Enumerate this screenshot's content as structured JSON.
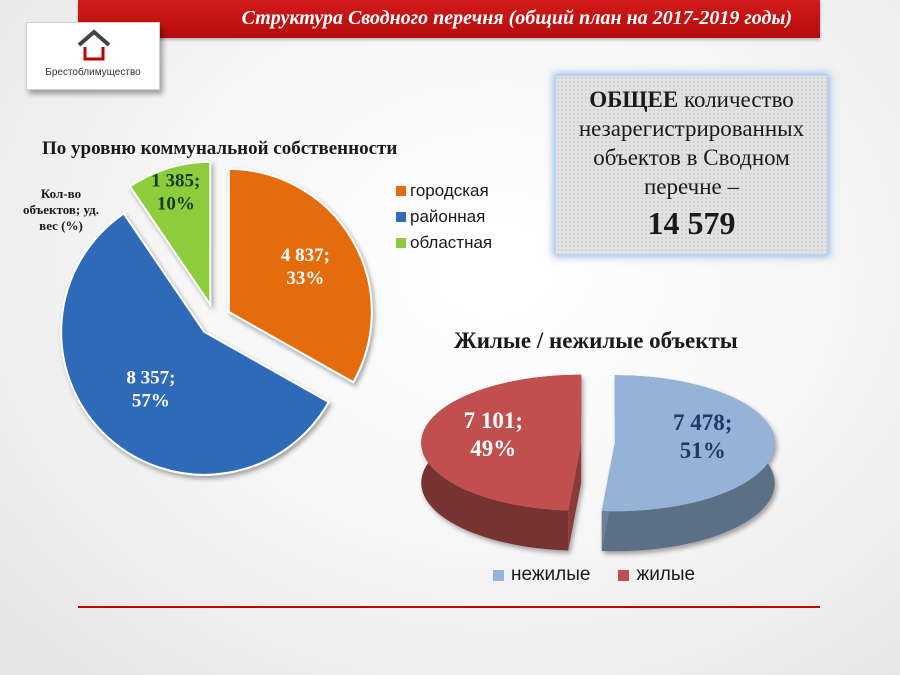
{
  "header": {
    "title": "Структура Сводного перечня (общий план на 2017-2019 годы)"
  },
  "logo": {
    "text": "Брестоблимущество",
    "icon": "house-roof-icon"
  },
  "total": {
    "bold_word": "ОБЩЕЕ",
    "line1_rest": " количество",
    "lines": [
      "незарегистрированных",
      "объектов в Сводном",
      "перечне –"
    ],
    "value": "14 579"
  },
  "chart_data": [
    {
      "type": "pie",
      "title": "По уровню коммунальной собственности",
      "ylabel": "Кол-во объектов; уд. вес (%)",
      "legend_position": "right",
      "exploded": true,
      "categories": [
        "городская",
        "районная",
        "областная"
      ],
      "values": [
        4837,
        8357,
        1385
      ],
      "percents": [
        33,
        57,
        10
      ],
      "labels": [
        [
          "4 837;",
          "33%"
        ],
        [
          "8 357;",
          "57%"
        ],
        [
          "1 385;",
          "10%"
        ]
      ],
      "colors": [
        "#e46c0a",
        "#2f6bb8",
        "#8ccc3c"
      ]
    },
    {
      "type": "pie",
      "title": "Жилые / нежилые объекты",
      "style": "3d-exploded",
      "legend_position": "bottom",
      "categories": [
        "нежилые",
        "жилые"
      ],
      "values": [
        7478,
        7101
      ],
      "percents": [
        51,
        49
      ],
      "labels": [
        [
          "7 478;",
          "51%"
        ],
        [
          "7 101;",
          "49%"
        ]
      ],
      "colors": [
        "#95b3d7",
        "#c0504d"
      ]
    }
  ]
}
